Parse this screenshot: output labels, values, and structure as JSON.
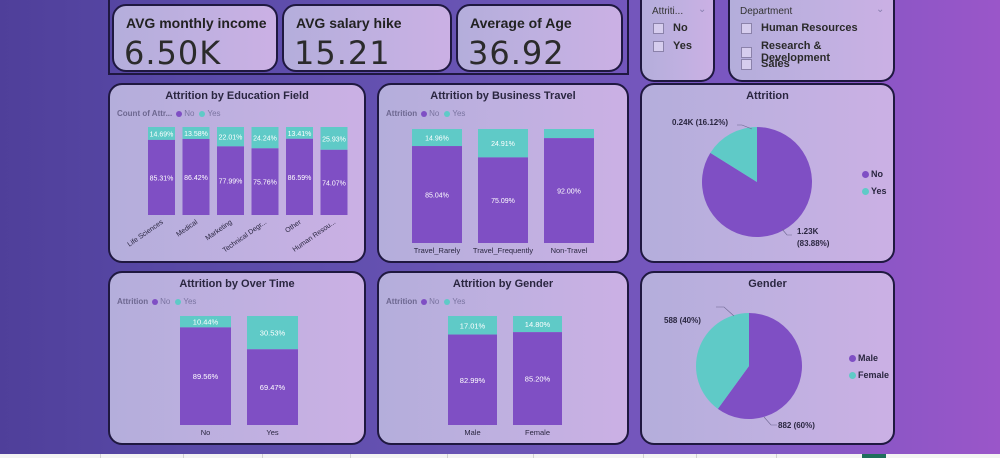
{
  "colors": {
    "no": "#7f4fc4",
    "yes": "#5fcac7",
    "card_border": "#1f1840",
    "text_dark": "#2a2640"
  },
  "kpis": [
    {
      "label": "AVG monthly income",
      "value": "6.50K"
    },
    {
      "label": "AVG salary hike",
      "value": "15.21"
    },
    {
      "label": "Average of Age",
      "value": "36.92"
    }
  ],
  "slicers": {
    "attrition": {
      "title": "Attriti...",
      "chevron": "chevron-down-icon",
      "options": [
        "No",
        "Yes"
      ]
    },
    "department": {
      "title": "Department",
      "chevron": "chevron-down-icon",
      "options": [
        "Human Resources",
        "Research & Development",
        "Sales"
      ]
    }
  },
  "chart_data": [
    {
      "id": "education",
      "type": "bar",
      "stacked": "100%",
      "title": "Attrition by Education Field",
      "legend_title": "Count of Attr...",
      "legend": [
        "No",
        "Yes"
      ],
      "categories": [
        "Life Sciences",
        "Medical",
        "Marketing",
        "Technical Degr...",
        "Other",
        "Human Resou..."
      ],
      "series": [
        {
          "name": "No",
          "values": [
            85.31,
            86.42,
            77.99,
            75.76,
            86.59,
            74.07
          ],
          "labels": [
            "85.31%",
            "86.42%",
            "77.99%",
            "75.76%",
            "86.59%",
            "74.07%"
          ]
        },
        {
          "name": "Yes",
          "values": [
            14.69,
            13.58,
            22.01,
            24.24,
            13.41,
            25.93
          ],
          "labels": [
            "14.69%",
            "13.58%",
            "22.01%",
            "24.24%",
            "13.41%",
            "25.93%"
          ]
        }
      ],
      "ylim": [
        0,
        100
      ],
      "xlabel_rotation": "diagonal"
    },
    {
      "id": "travel",
      "type": "bar",
      "stacked": "100%",
      "title": "Attrition by Business Travel",
      "legend_title": "Attrition",
      "legend": [
        "No",
        "Yes"
      ],
      "categories": [
        "Travel_Rarely",
        "Travel_Frequently",
        "Non-Travel"
      ],
      "series": [
        {
          "name": "No",
          "values": [
            85.04,
            75.09,
            92.0
          ],
          "labels": [
            "85.04%",
            "75.09%",
            "92.00%"
          ]
        },
        {
          "name": "Yes",
          "values": [
            14.96,
            24.91,
            8.0
          ],
          "labels": [
            "14.96%",
            "24.91%",
            ""
          ]
        }
      ],
      "ylim": [
        0,
        100
      ]
    },
    {
      "id": "attrition_pie",
      "type": "pie",
      "title": "Attrition",
      "legend": [
        "No",
        "Yes"
      ],
      "slices": [
        {
          "name": "No",
          "value": 1233,
          "percent": 83.88,
          "label": "1.23K (83.88%)",
          "label_line1": "1.23K",
          "label_line2": "(83.88%)"
        },
        {
          "name": "Yes",
          "value": 237,
          "percent": 16.12,
          "label": "0.24K (16.12%)"
        }
      ],
      "legend_position": "right"
    },
    {
      "id": "overtime",
      "type": "bar",
      "stacked": "100%",
      "title": "Attrition by Over Time",
      "legend_title": "Attrition",
      "legend": [
        "No",
        "Yes"
      ],
      "categories": [
        "No",
        "Yes"
      ],
      "series": [
        {
          "name": "No",
          "values": [
            89.56,
            69.47
          ],
          "labels": [
            "89.56%",
            "69.47%"
          ]
        },
        {
          "name": "Yes",
          "values": [
            10.44,
            30.53
          ],
          "labels": [
            "10.44%",
            "30.53%"
          ]
        }
      ],
      "ylim": [
        0,
        100
      ]
    },
    {
      "id": "gender_bar",
      "type": "bar",
      "stacked": "100%",
      "title": "Attrition by Gender",
      "legend_title": "Attrition",
      "legend": [
        "No",
        "Yes"
      ],
      "categories": [
        "Male",
        "Female"
      ],
      "series": [
        {
          "name": "No",
          "values": [
            82.99,
            85.2
          ],
          "labels": [
            "82.99%",
            "85.20%"
          ]
        },
        {
          "name": "Yes",
          "values": [
            17.01,
            14.8
          ],
          "labels": [
            "17.01%",
            "14.80%"
          ]
        }
      ],
      "ylim": [
        0,
        100
      ]
    },
    {
      "id": "gender_pie",
      "type": "pie",
      "title": "Gender",
      "legend": [
        "Male",
        "Female"
      ],
      "slices": [
        {
          "name": "Male",
          "value": 882,
          "percent": 60,
          "label": "882 (60%)"
        },
        {
          "name": "Female",
          "value": 588,
          "percent": 40,
          "label": "588 (40%)"
        }
      ],
      "legend_position": "right"
    }
  ]
}
